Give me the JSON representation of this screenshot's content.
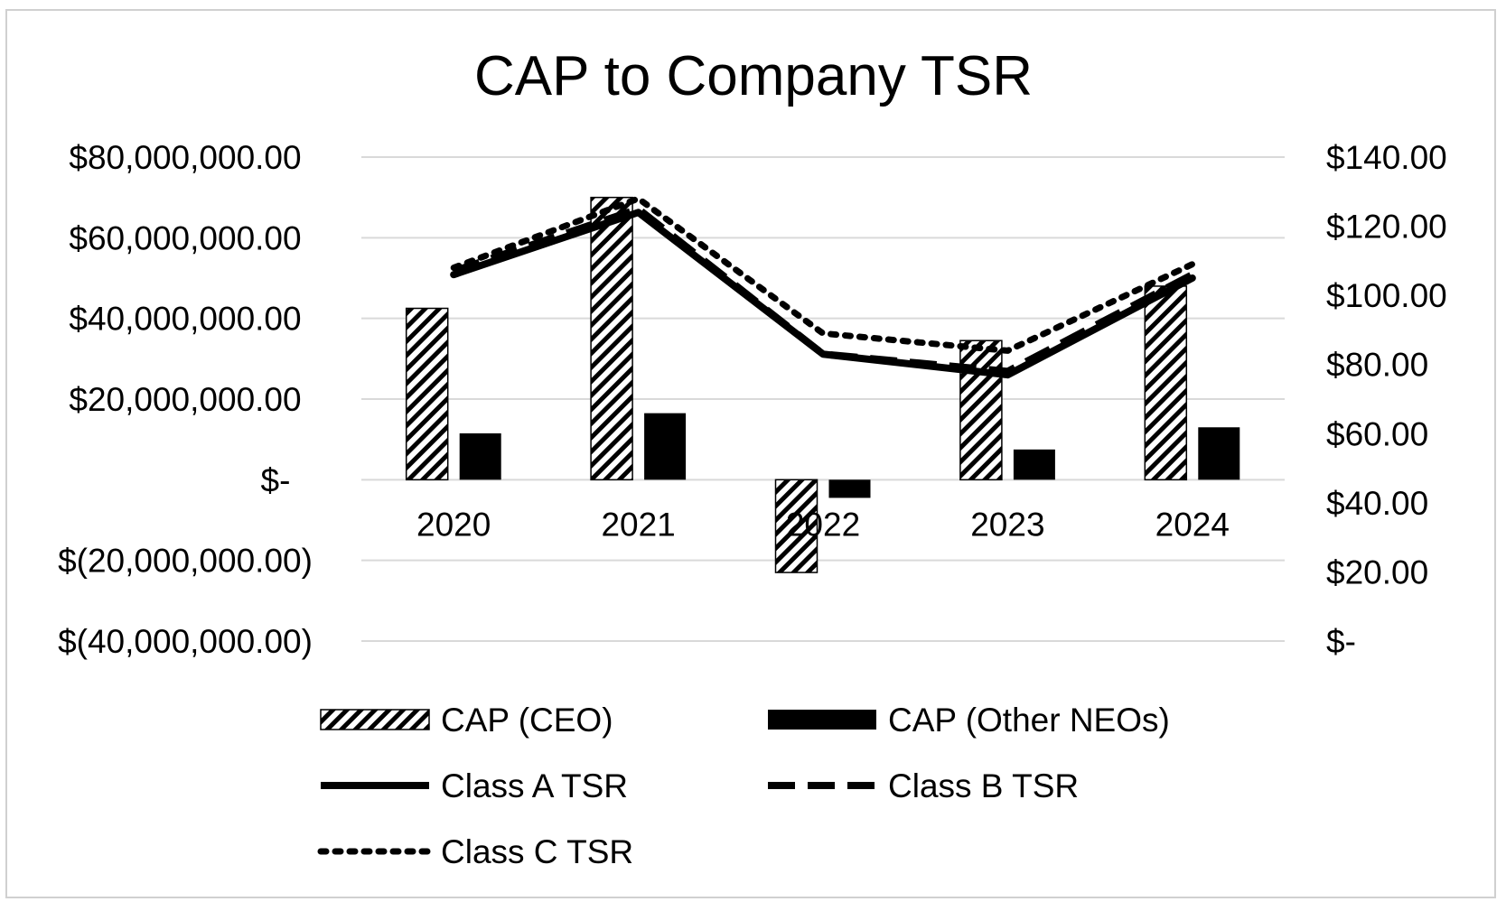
{
  "chart_data": {
    "type": "bar",
    "title": "CAP to Company TSR",
    "categories": [
      "2020",
      "2021",
      "2022",
      "2023",
      "2024"
    ],
    "left_axis": {
      "range": [
        -40000000,
        80000000
      ],
      "tick_values": [
        80000000,
        60000000,
        40000000,
        20000000,
        0,
        -20000000,
        -40000000
      ],
      "tick_labels": [
        "$80,000,000.00",
        "$60,000,000.00",
        "$40,000,000.00",
        "$20,000,000.00",
        "$-",
        "$(20,000,000.00)",
        "$(40,000,000.00)"
      ]
    },
    "right_axis": {
      "range": [
        0,
        140
      ],
      "tick_values": [
        140,
        120,
        100,
        80,
        60,
        40,
        20,
        0
      ],
      "tick_labels": [
        "$140.00",
        "$120.00",
        "$100.00",
        "$80.00",
        "$60.00",
        "$40.00",
        "$20.00",
        "$-"
      ]
    },
    "grid": true,
    "legend_position": "bottom",
    "series": [
      {
        "name": "CAP (CEO)",
        "kind": "bar",
        "axis": "left",
        "pattern": "hatch",
        "values": [
          42500000,
          70000000,
          -23000000,
          34500000,
          48000000
        ]
      },
      {
        "name": "CAP (Other NEOs)",
        "kind": "bar",
        "axis": "left",
        "pattern": "solid",
        "values": [
          11500000,
          16500000,
          -4500000,
          7500000,
          13000000
        ]
      },
      {
        "name": "Class A TSR",
        "kind": "line",
        "axis": "right",
        "dash": "solid",
        "values": [
          106,
          124,
          83,
          77,
          105
        ]
      },
      {
        "name": "Class B TSR",
        "kind": "line",
        "axis": "right",
        "dash": "dashed",
        "values": [
          107,
          125,
          83,
          78,
          106
        ]
      },
      {
        "name": "Class C TSR",
        "kind": "line",
        "axis": "right",
        "dash": "dotted",
        "values": [
          108,
          128,
          89,
          84,
          109
        ]
      }
    ]
  }
}
